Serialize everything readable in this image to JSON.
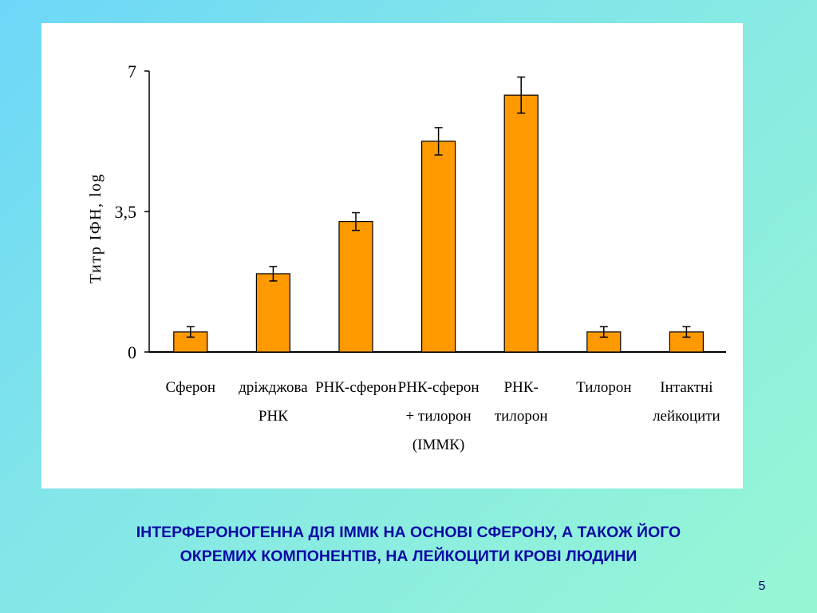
{
  "colors": {
    "bar": "#ff9900",
    "bar_border": "#000000",
    "caption": "#0a0aa6"
  },
  "chart_data": {
    "type": "bar",
    "ylabel": "Титр ІФН, log",
    "ylim": [
      0,
      7
    ],
    "yticks": [
      "0",
      "3,5",
      "7"
    ],
    "ytick_values": [
      0,
      3.5,
      7
    ],
    "categories": [
      [
        "Сферон"
      ],
      [
        "дріжджова",
        "РНК"
      ],
      [
        "РНК-сферон"
      ],
      [
        "РНК-сферон",
        "+ тилорон",
        "(ІММК)"
      ],
      [
        "РНК-",
        "тилорон"
      ],
      [
        "Тилорон"
      ],
      [
        "Інтактні",
        "лейкоцити"
      ]
    ],
    "values": [
      0.5,
      1.95,
      3.25,
      5.25,
      6.4,
      0.5,
      0.5
    ],
    "errors": [
      0.13,
      0.18,
      0.22,
      0.34,
      0.45,
      0.13,
      0.13
    ],
    "grid": false
  },
  "caption": {
    "line1": "ІНТЕРФЕРОНОГЕННА ДІЯ ІММК НА ОСНОВІ СФЕРОНУ, А ТАКОЖ ЙОГО",
    "line2": "ОКРЕМИХ КОМПОНЕНТІВ, НА ЛЕЙКОЦИТИ КРОВІ ЛЮДИНИ"
  },
  "slide_number": "5"
}
